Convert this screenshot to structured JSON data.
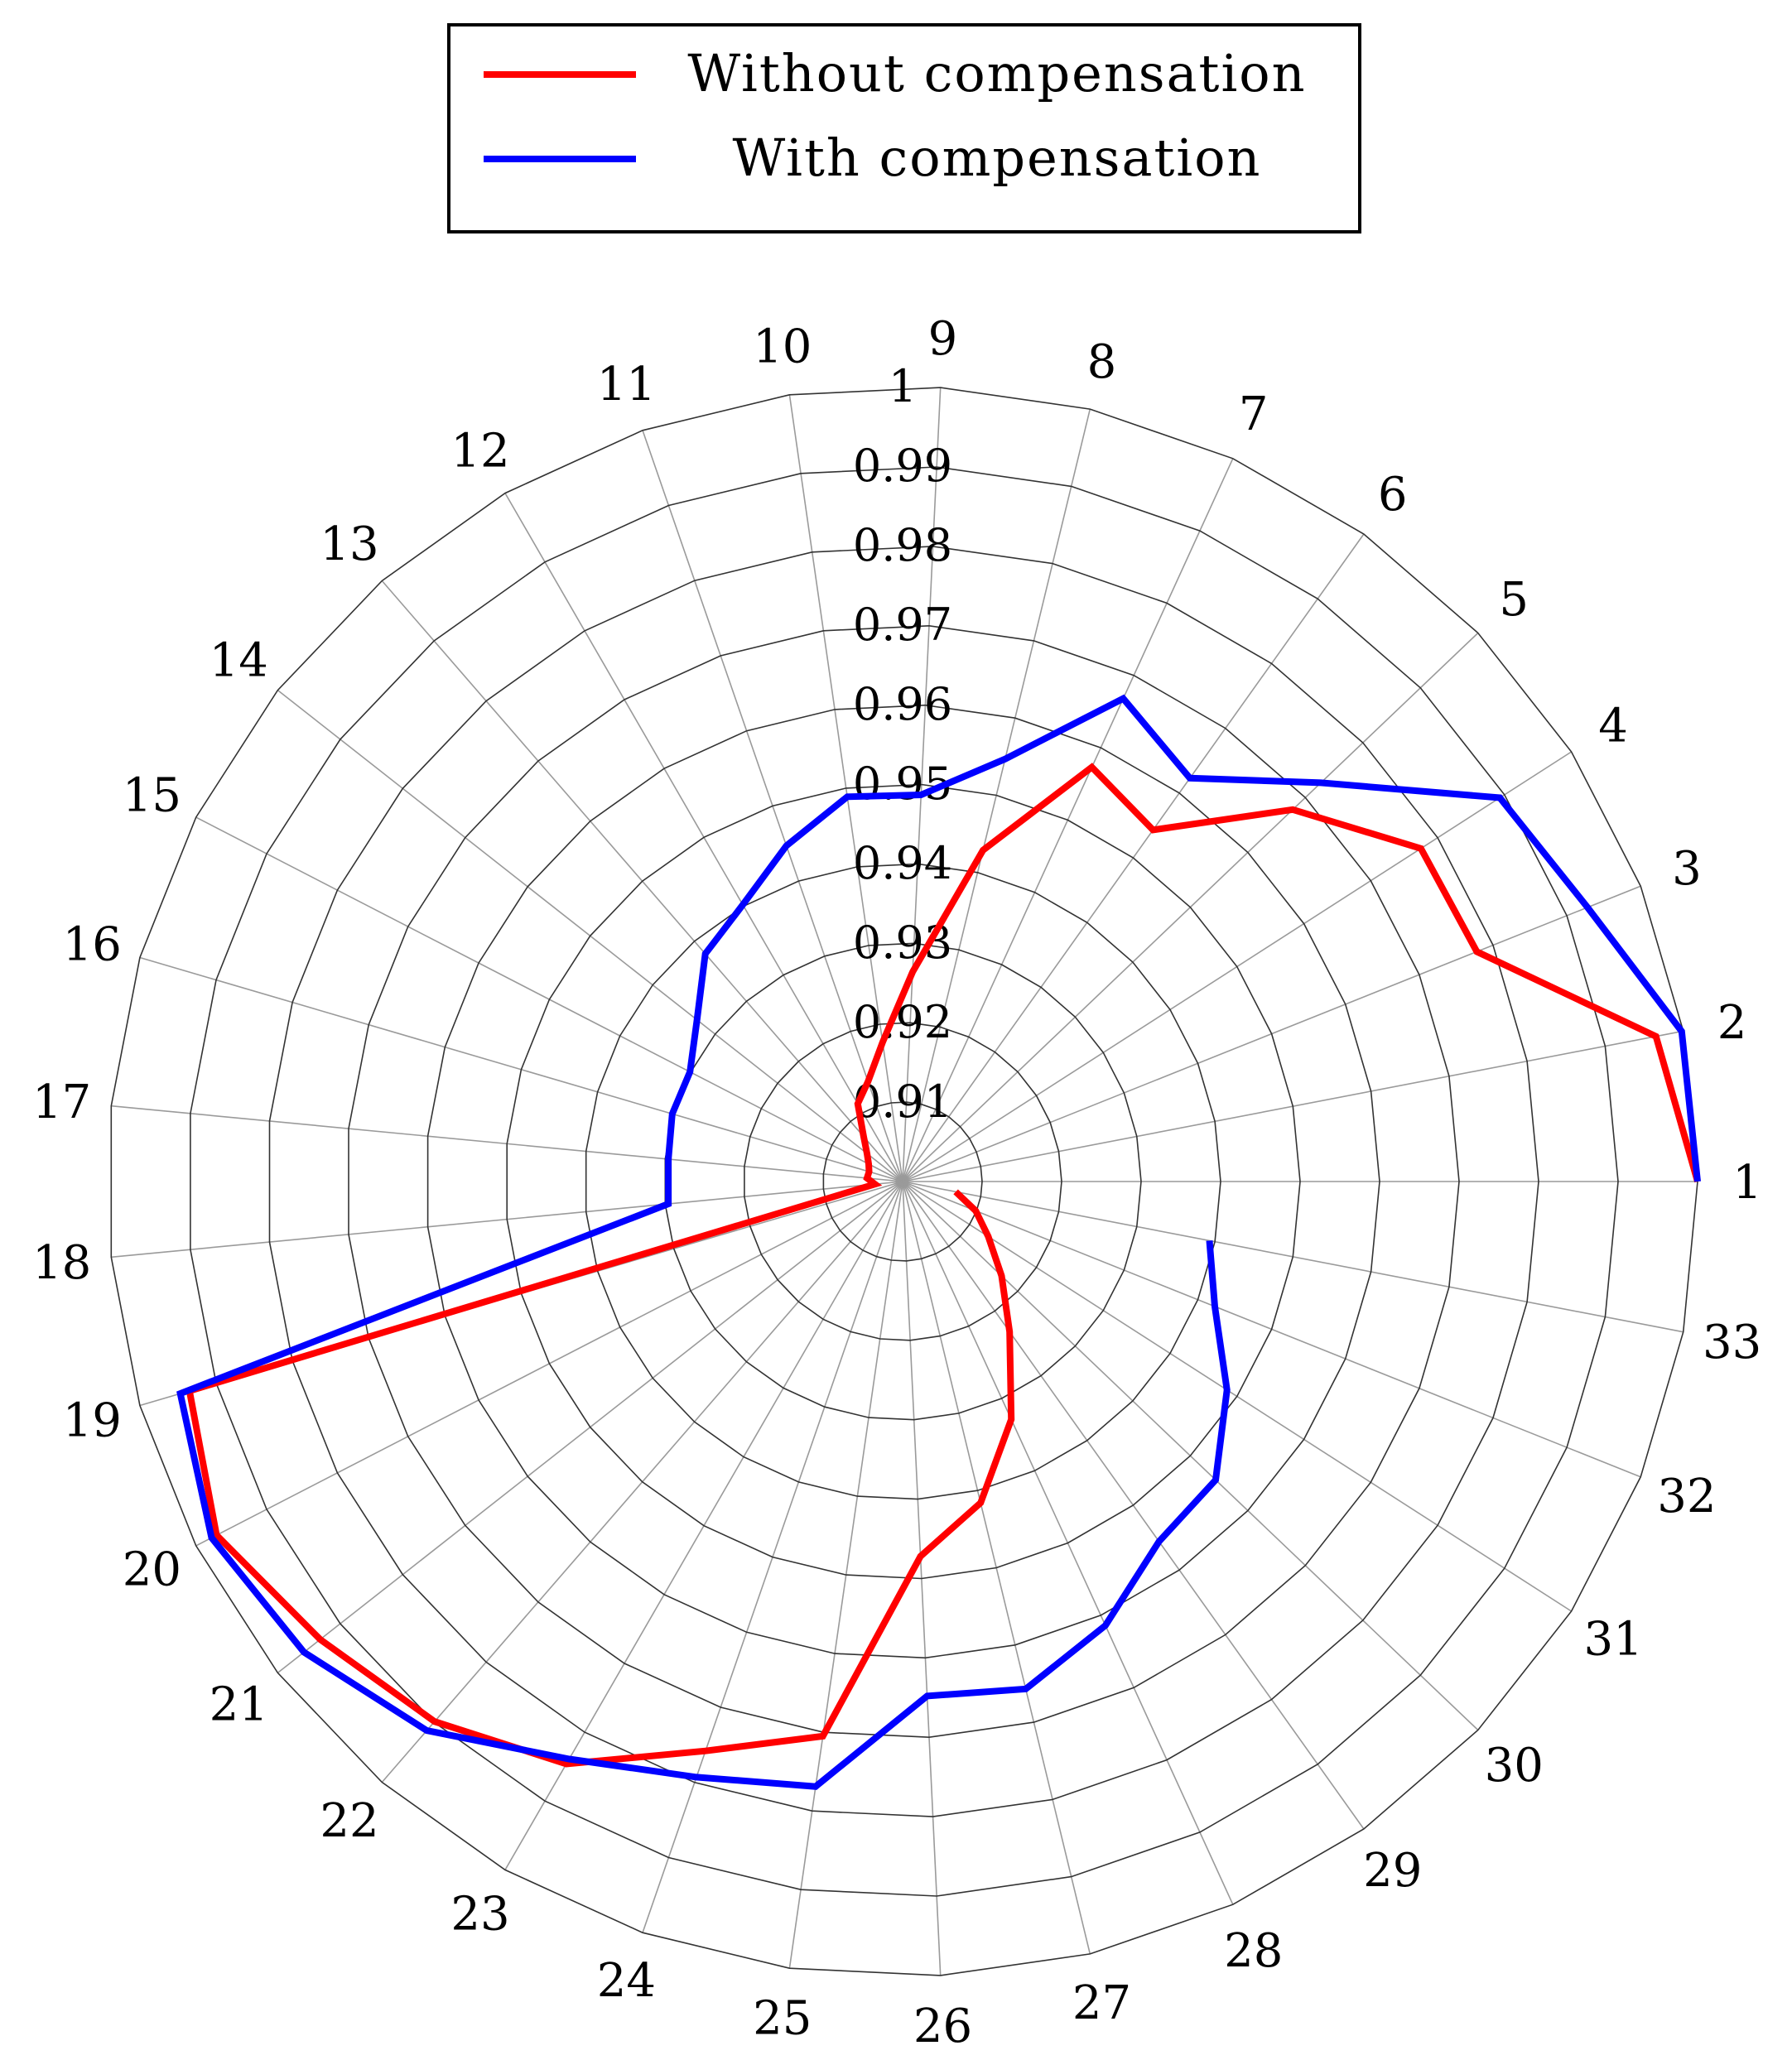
{
  "colors": {
    "without": "#ff0000",
    "with": "#0000ff",
    "grid": "#9a9a9a",
    "ring": "#333333",
    "axis_text": "#000000"
  },
  "legend": {
    "items": [
      {
        "label": "Without compensation",
        "color": "#ff0000"
      },
      {
        "label": "With compensation",
        "color": "#0000ff"
      }
    ]
  },
  "chart_data": {
    "type": "polar-line",
    "categories": [
      "1",
      "2",
      "3",
      "4",
      "5",
      "6",
      "7",
      "8",
      "9",
      "10",
      "11",
      "12",
      "13",
      "14",
      "15",
      "16",
      "17",
      "18",
      "19",
      "20",
      "21",
      "22",
      "23",
      "24",
      "25",
      "26",
      "27",
      "28",
      "29",
      "30",
      "31",
      "32",
      "33"
    ],
    "rlim": [
      0.9,
      1.0
    ],
    "r_ticks": [
      "0.91",
      "0.92",
      "0.93",
      "0.94",
      "0.95",
      "0.96",
      "0.97",
      "0.98",
      "0.99",
      "1"
    ],
    "series": [
      {
        "name": "Without compensation",
        "values": [
          1.0,
          0.9965,
          0.9778,
          0.9775,
          0.9678,
          0.9543,
          0.9573,
          0.9429,
          0.9264,
          0.9177,
          0.9133,
          0.9113,
          0.9075,
          0.9057,
          0.9048,
          0.9044,
          0.9045,
          0.9035,
          0.9935,
          0.9971,
          0.9932,
          0.9899,
          0.9846,
          0.9758,
          0.9705,
          0.9472,
          0.9416,
          0.9329,
          0.9232,
          0.9172,
          0.9128,
          0.9099,
          0.9068
        ]
      },
      {
        "name": "With compensation",
        "values": [
          1.0,
          0.9998,
          0.9928,
          0.9893,
          0.9727,
          0.9623,
          0.9668,
          0.9547,
          0.9487,
          0.9489,
          0.9447,
          0.9402,
          0.9379,
          0.9329,
          0.9301,
          0.9302,
          0.9296,
          0.9296,
          0.9947,
          0.9978,
          0.9958,
          0.9914,
          0.9839,
          0.9793,
          0.9769,
          0.9648,
          0.9657,
          0.9614,
          0.9556,
          0.9544,
          0.9485,
          0.9423,
          0.9393
        ]
      }
    ]
  }
}
